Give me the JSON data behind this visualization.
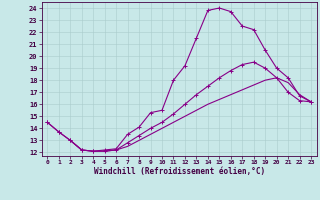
{
  "xlabel": "Windchill (Refroidissement éolien,°C)",
  "bg_color": "#c8e8e8",
  "line_color": "#880088",
  "xlim": [
    -0.5,
    23.5
  ],
  "ylim": [
    11.7,
    24.5
  ],
  "xticks": [
    0,
    1,
    2,
    3,
    4,
    5,
    6,
    7,
    8,
    9,
    10,
    11,
    12,
    13,
    14,
    15,
    16,
    17,
    18,
    19,
    20,
    21,
    22,
    23
  ],
  "yticks": [
    12,
    13,
    14,
    15,
    16,
    17,
    18,
    19,
    20,
    21,
    22,
    23,
    24
  ],
  "line1_x": [
    0,
    1,
    2,
    3,
    4,
    5,
    6,
    7,
    8,
    9,
    10,
    11,
    12,
    13,
    14,
    15,
    16,
    17,
    18,
    19,
    20,
    21,
    22,
    23
  ],
  "line1_y": [
    14.5,
    13.7,
    13.0,
    12.2,
    12.1,
    12.2,
    12.3,
    13.5,
    14.1,
    15.3,
    15.5,
    18.0,
    19.2,
    21.5,
    23.8,
    24.0,
    23.7,
    22.5,
    22.2,
    20.5,
    19.0,
    18.2,
    16.7,
    16.2
  ],
  "line2_x": [
    0,
    1,
    2,
    3,
    4,
    5,
    6,
    7,
    8,
    9,
    10,
    11,
    12,
    13,
    14,
    15,
    16,
    17,
    18,
    19,
    20,
    21,
    22,
    23
  ],
  "line2_y": [
    14.5,
    13.7,
    13.0,
    12.2,
    12.1,
    12.1,
    12.2,
    12.8,
    13.4,
    14.0,
    14.5,
    15.2,
    16.0,
    16.8,
    17.5,
    18.2,
    18.8,
    19.3,
    19.5,
    19.0,
    18.2,
    17.0,
    16.3,
    16.2
  ],
  "line3_x": [
    2,
    3,
    4,
    5,
    6,
    7,
    8,
    9,
    10,
    11,
    12,
    13,
    14,
    15,
    16,
    17,
    18,
    19,
    20,
    21,
    22,
    23
  ],
  "line3_y": [
    13.0,
    12.2,
    12.1,
    12.1,
    12.2,
    12.5,
    13.0,
    13.5,
    14.0,
    14.5,
    15.0,
    15.5,
    16.0,
    16.4,
    16.8,
    17.2,
    17.6,
    18.0,
    18.2,
    17.8,
    16.8,
    16.2
  ]
}
